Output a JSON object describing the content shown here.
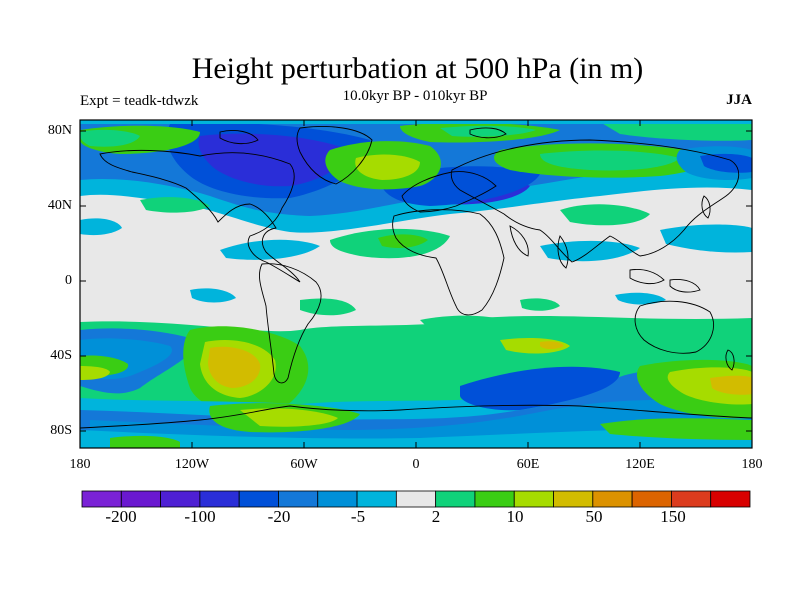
{
  "figure": {
    "title": "Height perturbation at 500 hPa (in m)",
    "left_string": "Expt = teadk-tdwzk",
    "center_string": "10.0kyr BP - 010kyr BP",
    "right_string": "JJA"
  },
  "axes": {
    "lat_ticks": [
      "80N",
      "40N",
      "0",
      "40S",
      "80S"
    ],
    "lon_ticks": [
      "180",
      "120W",
      "60W",
      "0",
      "60E",
      "120E",
      "180"
    ]
  },
  "colorbar": {
    "colors": [
      "#7a22d6",
      "#6a18d0",
      "#4e20d4",
      "#2a2ed8",
      "#0050d8",
      "#1478d8",
      "#0090d8",
      "#00b4dc",
      "#e8e8e8",
      "#10d27a",
      "#3acd14",
      "#a6dc00",
      "#d2bc00",
      "#dc9200",
      "#dc6400",
      "#dc3c1e",
      "#d80000"
    ],
    "labels": [
      "-200",
      "-100",
      "-20",
      "-5",
      "2",
      "10",
      "50",
      "150"
    ]
  }
}
